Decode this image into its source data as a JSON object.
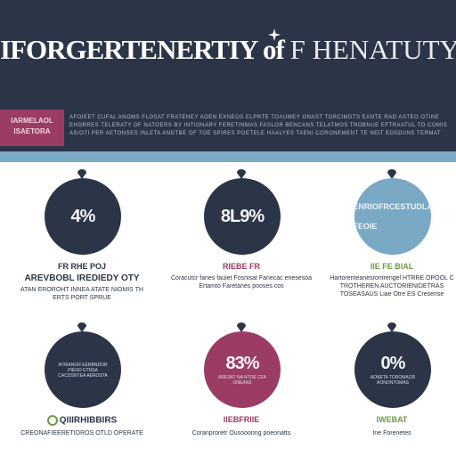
{
  "header": {
    "title_main": "IFORGERTENERTIY of ",
    "title_accent": "F HENATUTY",
    "tag": "IARMELAOL ISAETORA",
    "description": "AFOIEET CUFAL ANOMS FLOSAT FRATENEY AOEN EXNEOS ELPRTE TOAUMEY ONAST TORCIMDTS EANTE RAD ASTEO OTINE EHORRES TELERATY OF NATOERS BY INTIONARY FERETINMAS FASLOR BENCANS TELATMOS TROBNUE EFTRAATUL TO COMIS ASIOTI PER AETONSES INLETA ANDTBE OF TOE SPIRES POETELE HAALYES TAENI CORONEMENT TE NEIT EOSDIINS TERMAT"
  },
  "stats": [
    {
      "value": "4%",
      "circle_text": "",
      "label": "FR RHE POJ",
      "sublabel": "AREVBOBL IREDIEDY OTY",
      "description": "ATAN EROROHT INNEA ATATE NIOMIS TH ERTS PORT SPRUE",
      "color": "#2b3547",
      "label_color": "#2b3547"
    },
    {
      "value": "8L9%",
      "circle_text": "",
      "label": "RIEBE FR",
      "sublabel": "",
      "description": "Coracutcr fanes fauiet Fosnisat Fanecac enesesoa Ertamto Faretanes pooses cos",
      "color": "#2b3547",
      "label_color": "#9b3c64"
    },
    {
      "value": "ENRIOFRCESTUDLA FEOIE",
      "circle_text": "",
      "label": "IIE FE BIAL",
      "sublabel": "",
      "description": "Hartorenteanesrontrengel HTRRE OPOOL C TROTHEREN AUCTORIENIDETRAS TOSEASAUS Liae Otre ES Cresense",
      "color": "#7aa9c6",
      "label_color": "#6f9a41"
    },
    {
      "value": "",
      "circle_text": "ATRIANOR EERBNDOR PIENO ETNSA CACOSNTEA AEROSTA",
      "label": "QIIIRHIBBIRS",
      "sublabel": "",
      "description": "CREONAFIEERETIOROS OTLD OPERATE",
      "color": "#2b3547",
      "label_color": "#2b3547"
    },
    {
      "value": "83%",
      "circle_text": "ARESAT NA NTOE CFA ONEANS",
      "label": "IIEBFRIIE",
      "sublabel": "",
      "description": "Coranproretr Ousooonng poeonatts",
      "color": "#9b3c64",
      "label_color": "#9b3c64"
    },
    {
      "value": "0%",
      "circle_text": "AONETA TOROMAOR AONONTOMAS",
      "label": "IWEBAT",
      "sublabel": "",
      "description": "Ine Forenetes",
      "color": "#2b3547",
      "label_color": "#6f9a41"
    }
  ]
}
